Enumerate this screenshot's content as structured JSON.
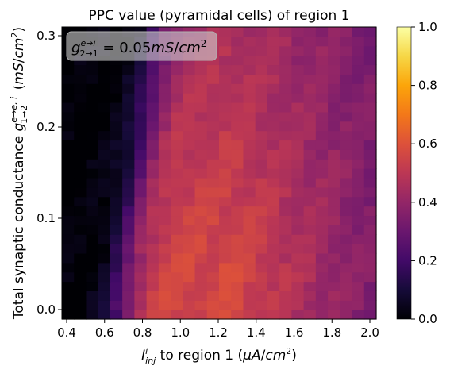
{
  "chart_data": {
    "type": "heatmap",
    "title": "PPC value (pyramidal cells) of region 1",
    "xlabel": "I_inj^i to region 1 (μA/cm²)",
    "ylabel": "Total synaptic conductance g_{1→2}^{e→e,i} (mS/cm²)",
    "annotation": "g_{2→1}^{e→i} = 0.05mS/cm²",
    "x_range": [
      0.4,
      2.0
    ],
    "y_range": [
      0.0,
      0.31
    ],
    "x_ticks": [
      0.4,
      0.6,
      0.8,
      1.0,
      1.2,
      1.4,
      1.6,
      1.8,
      2.0
    ],
    "x_tick_labels": [
      "0.4",
      "0.6",
      "0.8",
      "1.0",
      "1.2",
      "1.4",
      "1.6",
      "1.8",
      "2.0"
    ],
    "y_ticks": [
      0.0,
      0.1,
      0.2,
      0.3
    ],
    "y_tick_labels": [
      "0.0",
      "0.1",
      "0.2",
      "0.3"
    ],
    "colormap": "inferno",
    "colorbar": {
      "range": [
        0.0,
        1.0
      ],
      "ticks": [
        0.0,
        0.2,
        0.4,
        0.6,
        0.8,
        1.0
      ],
      "tick_labels": [
        "0.0",
        "0.2",
        "0.4",
        "0.6",
        "0.8",
        "1.0"
      ]
    },
    "grid": false,
    "value_description": "PPC is near 0 for low injected current (x < 0.7), rises steeply around x = 0.8–1.0, peaks near 0.55–0.6 around x = 1.0–1.4 for low conductance (y < 0.1), and decays toward 0.3 at x = 2.0 and toward 0.4 at high conductance."
  }
}
